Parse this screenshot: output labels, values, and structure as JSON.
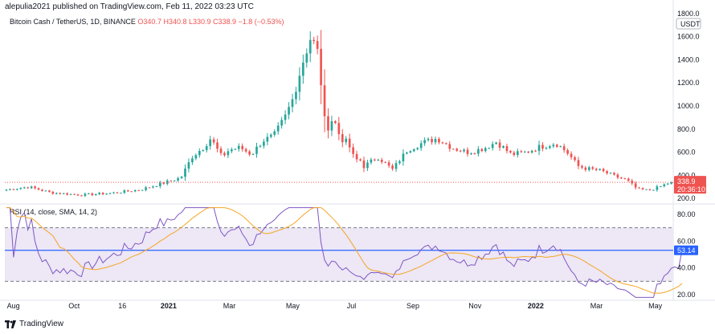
{
  "header": {
    "text": "alepulia2021 published on TradingView.com, Feb 11, 2022 03:23 UTC"
  },
  "legend": {
    "symbol": "Bitcoin Cash / TetherUS, 1D, BINANCE",
    "ohlc": "O340.7 H340.8 L330.9 C338.9 −1.8 (−0.53%)"
  },
  "currency": "USDT",
  "price_badge": {
    "value": "338.9",
    "countdown": "20:36:10"
  },
  "rsi": {
    "label": "RSI (14, close, SMA, 14, 2)",
    "value_badge": "53.14"
  },
  "brand": {
    "name": "TradingView"
  },
  "colors": {
    "candle_up": "#26a69a",
    "candle_down": "#ef5350",
    "price_line": "#ef5350",
    "rsi_line": "#7e57c2",
    "rsi_ma": "#f5a623",
    "rsi_band": "#ede7f6",
    "rsi_value_line": "#2962ff"
  },
  "chart_data": [
    {
      "type": "candlestick",
      "name": "Bitcoin Cash / TetherUS, 1D, BINANCE",
      "y_axis_ticks": [
        200.0,
        400.0,
        600.0,
        800.0,
        1000.0,
        1200.0,
        1400.0,
        1600.0,
        1800.0
      ],
      "ylim": [
        180,
        1820
      ],
      "x_ticks": [
        "Aug",
        "Oct",
        "16",
        "2021",
        "Mar",
        "May",
        "Jul",
        "Sep",
        "Nov",
        "2022",
        "Mar",
        "May"
      ],
      "x_ticks_bold": [
        "2021",
        "2022"
      ],
      "close_path": {
        "t": [
          0.0,
          0.03,
          0.06,
          0.1,
          0.14,
          0.18,
          0.21,
          0.235,
          0.25,
          0.265,
          0.275,
          0.29,
          0.3,
          0.315,
          0.33,
          0.345,
          0.36,
          0.375,
          0.385,
          0.4,
          0.41,
          0.42,
          0.43,
          0.44,
          0.45,
          0.46,
          0.47,
          0.475,
          0.48,
          0.5,
          0.52,
          0.54,
          0.56,
          0.58,
          0.6,
          0.62,
          0.63,
          0.645,
          0.66,
          0.68,
          0.7,
          0.72,
          0.74,
          0.755,
          0.77,
          0.78,
          0.8,
          0.82,
          0.835,
          0.85,
          0.865,
          0.88,
          0.89,
          0.91
        ],
        "price": [
          275,
          300,
          250,
          230,
          245,
          275,
          330,
          380,
          560,
          640,
          720,
          560,
          620,
          640,
          580,
          700,
          740,
          900,
          1050,
          1400,
          1600,
          1450,
          780,
          900,
          720,
          680,
          520,
          560,
          470,
          560,
          450,
          620,
          680,
          720,
          640,
          600,
          610,
          640,
          690,
          580,
          600,
          650,
          680,
          600,
          480,
          460,
          440,
          390,
          360,
          280,
          270,
          300,
          330,
          338.9
        ]
      },
      "last_price": 338.9
    },
    {
      "type": "line",
      "name": "RSI (14, close, SMA, 14, 2)",
      "y_axis_ticks": [
        20.0,
        40.0,
        60.0,
        80.0
      ],
      "ylim": [
        17,
        86
      ],
      "upper_band": 70,
      "lower_band": 30,
      "last_value": 53.14
    }
  ]
}
